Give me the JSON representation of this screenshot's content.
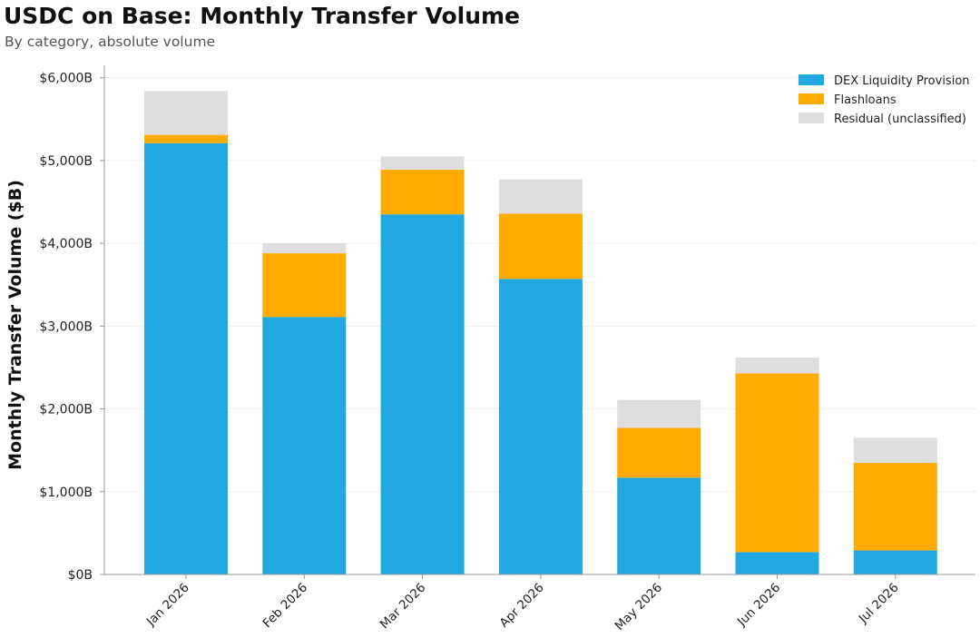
{
  "chart_data": {
    "type": "bar",
    "stacked": true,
    "title": "USDC on Base: Monthly Transfer Volume",
    "subtitle": "By category, absolute volume",
    "xlabel": "",
    "ylabel": "Monthly Transfer Volume ($B)",
    "ylim": [
      0,
      6150
    ],
    "yticks": [
      0,
      1000,
      2000,
      3000,
      4000,
      5000,
      6000
    ],
    "ytick_labels": [
      "$0B",
      "$1,000B",
      "$2,000B",
      "$3,000B",
      "$4,000B",
      "$5,000B",
      "$6,000B"
    ],
    "categories": [
      "Jan 2026",
      "Feb 2026",
      "Mar 2026",
      "Apr 2026",
      "May 2026",
      "Jun 2026",
      "Jul 2026"
    ],
    "series": [
      {
        "name": "DEX Liquidity Provision",
        "color": "#22a8e0",
        "values": [
          5210,
          3110,
          4350,
          3570,
          1170,
          270,
          290
        ]
      },
      {
        "name": "Flashloans",
        "color": "#ffab00",
        "values": [
          100,
          770,
          540,
          790,
          600,
          2160,
          1060
        ]
      },
      {
        "name": "Residual (unclassified)",
        "color": "#dedede",
        "values": [
          530,
          120,
          160,
          410,
          340,
          190,
          300
        ]
      }
    ],
    "grid": true,
    "legend_position": "top-right"
  }
}
